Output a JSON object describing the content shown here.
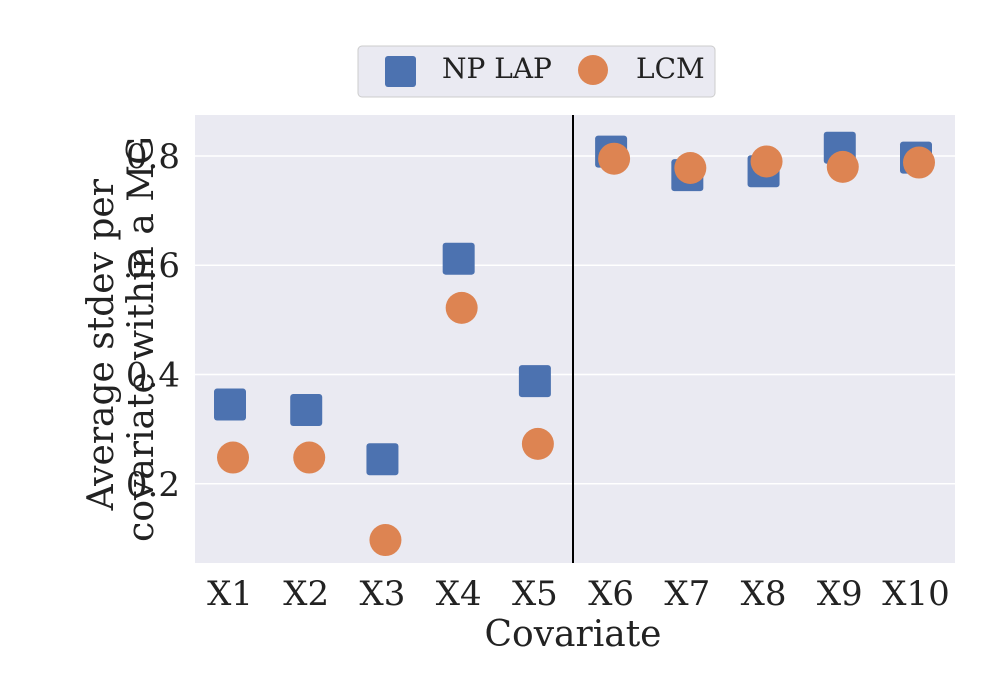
{
  "chart_data": {
    "type": "scatter",
    "title": "",
    "xlabel": "Covariate",
    "ylabel_lines": [
      "Average stdev per",
      "covariate within a MG"
    ],
    "categories": [
      "X1",
      "X2",
      "X3",
      "X4",
      "X5",
      "X6",
      "X7",
      "X8",
      "X9",
      "X10"
    ],
    "yticks": [
      "0.2",
      "0.4",
      "0.6",
      "0.8"
    ],
    "ytick_values": [
      0.2,
      0.4,
      0.6,
      0.8
    ],
    "ylim": [
      0.055,
      0.875
    ],
    "grid": true,
    "legend_position": "top-center",
    "divider_after_category": "X5",
    "series": [
      {
        "name": "NP LAP",
        "marker": "square",
        "color": "#4c72b0",
        "values": [
          0.345,
          0.335,
          0.245,
          0.612,
          0.388,
          0.808,
          0.765,
          0.772,
          0.815,
          0.797
        ]
      },
      {
        "name": "LCM",
        "marker": "circle",
        "color": "#dd8452",
        "values": [
          0.248,
          0.248,
          0.097,
          0.522,
          0.273,
          0.795,
          0.778,
          0.79,
          0.78,
          0.788
        ]
      }
    ]
  }
}
